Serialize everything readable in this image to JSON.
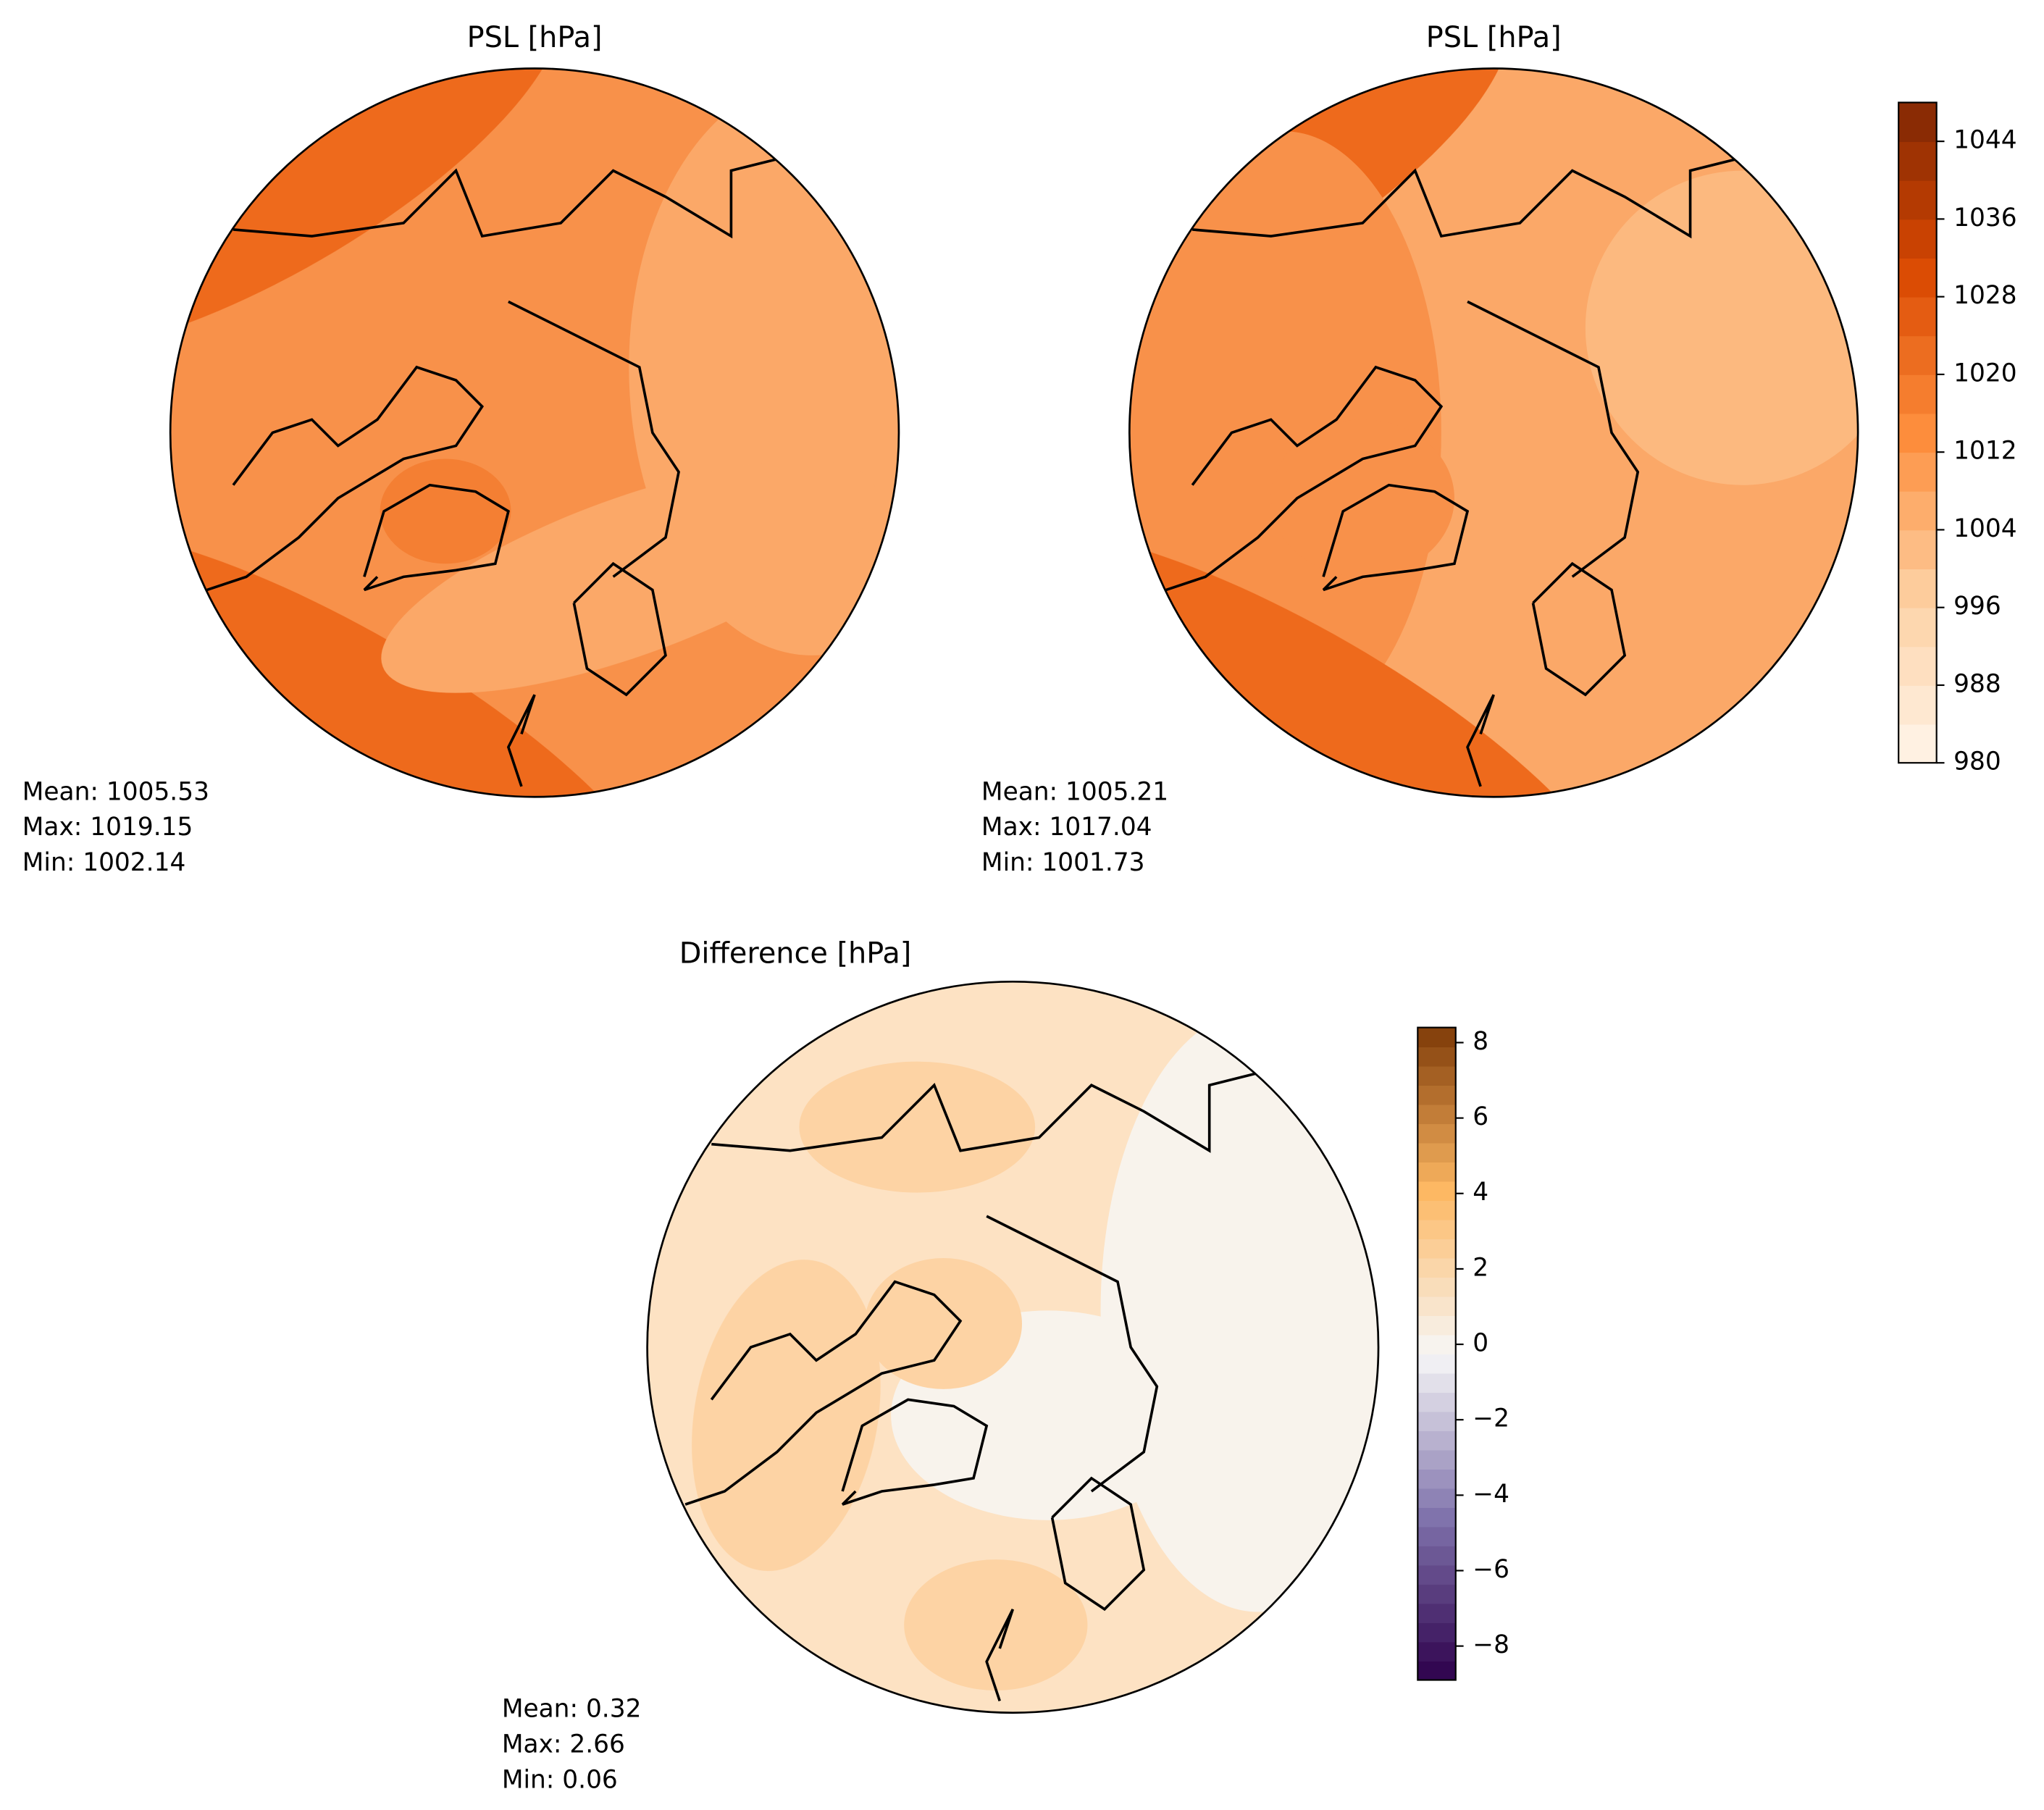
{
  "panels": [
    {
      "title": "PSL [hPa]",
      "stats": [
        "Mean: 1005.53",
        "Max: 1019.15",
        "Min: 1002.14"
      ]
    },
    {
      "title": "PSL [hPa]",
      "stats": [
        "Mean: 1005.21",
        "Max: 1017.04",
        "Min: 1001.73"
      ]
    },
    {
      "title": "Difference [hPa]",
      "stats": [
        "Mean:  0.32",
        "Max:  2.66",
        "Min:  0.06"
      ]
    }
  ],
  "colorbars": [
    {
      "lim": [
        980,
        1048
      ],
      "ticks": [
        980,
        988,
        996,
        1004,
        1012,
        1020,
        1028,
        1036,
        1044
      ]
    },
    {
      "lim": [
        -8.9,
        8.4
      ],
      "ticks": [
        {
          "value": -8,
          "label": "−8"
        },
        {
          "value": -6,
          "label": "−6"
        },
        {
          "value": -4,
          "label": "−4"
        },
        {
          "value": -2,
          "label": "−2"
        },
        0,
        2,
        4,
        6,
        8
      ]
    }
  ]
}
